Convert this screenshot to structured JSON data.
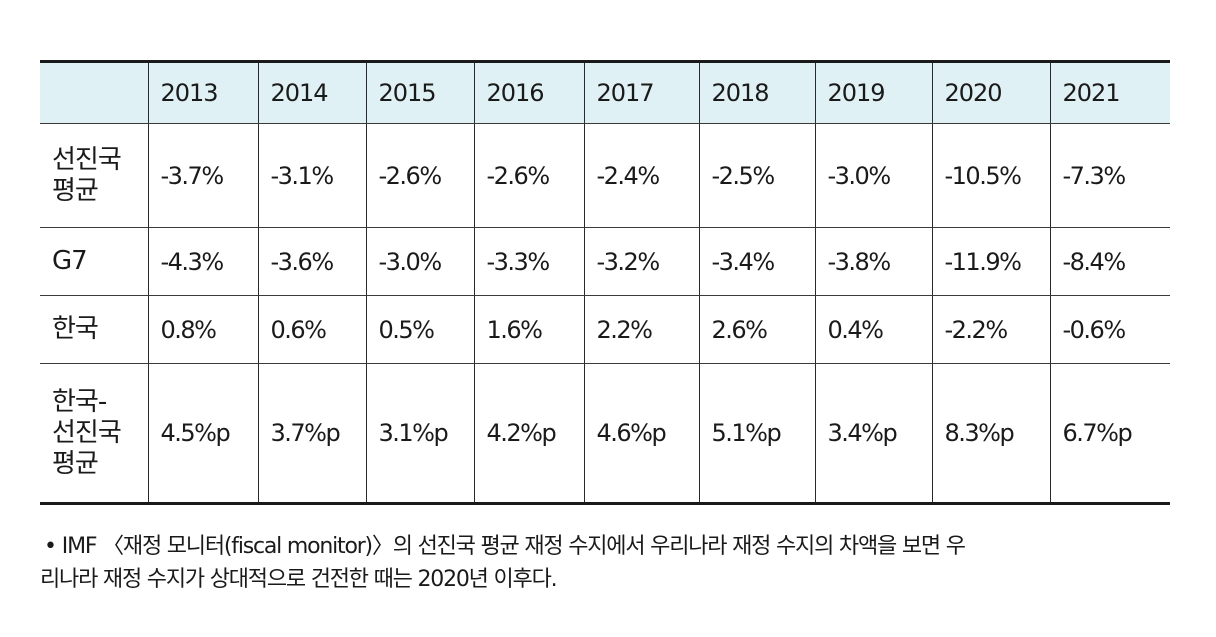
{
  "table": {
    "years": [
      "2013",
      "2014",
      "2015",
      "2016",
      "2017",
      "2018",
      "2019",
      "2020",
      "2021"
    ],
    "rows": [
      {
        "label_lines": [
          "선진국",
          "평균"
        ],
        "values": [
          "-3.7%",
          "-3.1%",
          "-2.6%",
          "-2.6%",
          "-2.4%",
          "-2.5%",
          "-3.0%",
          "-10.5%",
          "-7.3%"
        ]
      },
      {
        "label_lines": [
          "G7"
        ],
        "values": [
          "-4.3%",
          "-3.6%",
          "-3.0%",
          "-3.3%",
          "-3.2%",
          "-3.4%",
          "-3.8%",
          "-11.9%",
          "-8.4%"
        ]
      },
      {
        "label_lines": [
          "한국"
        ],
        "values": [
          "0.8%",
          "0.6%",
          "0.5%",
          "1.6%",
          "2.2%",
          "2.6%",
          "0.4%",
          "-2.2%",
          "-0.6%"
        ]
      },
      {
        "label_lines": [
          "한국-",
          "선진국",
          "평균"
        ],
        "values": [
          "4.5%p",
          "3.7%p",
          "3.1%p",
          "4.2%p",
          "4.6%p",
          "5.1%p",
          "3.4%p",
          "8.3%p",
          "6.7%p"
        ]
      }
    ]
  },
  "footnote": {
    "bullet": "•",
    "line1": "IMF 〈재정 모니터(fiscal monitor)〉의 선진국 평균 재정 수지에서 우리나라 재정 수지의 차액을 보면 우",
    "line2": "리나라 재정 수지가 상대적으로  건전한 때는 2020년 이후다."
  },
  "colors": {
    "header_bg": "#dff1f4",
    "text": "#1a1a1a",
    "rule": "#1a1a1a"
  }
}
